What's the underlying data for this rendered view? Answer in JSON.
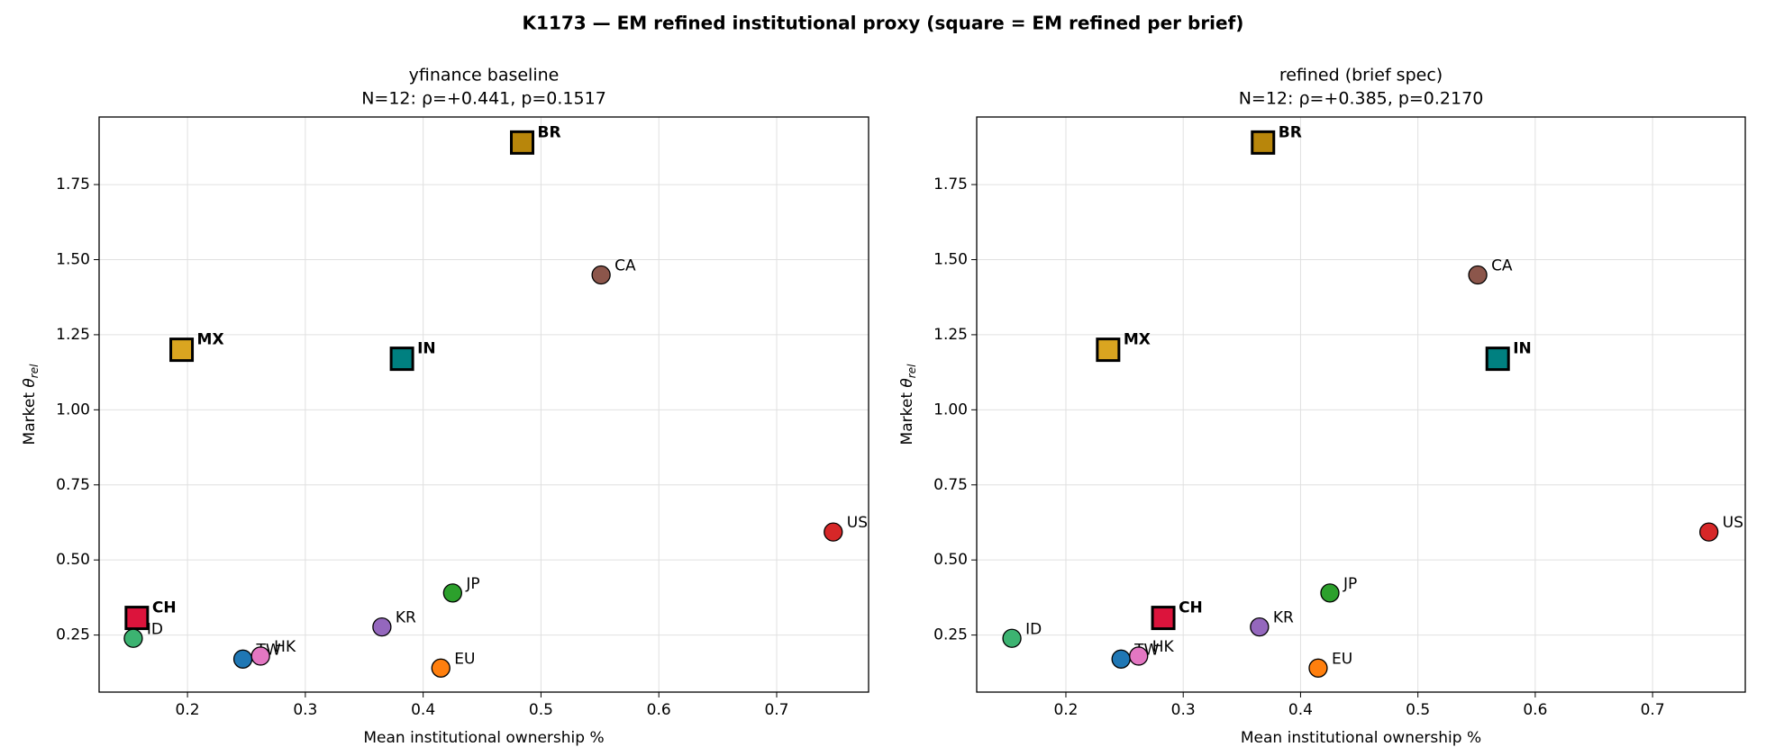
{
  "title": "K1173 — EM refined institutional proxy (square = EM refined per brief)",
  "chart_data": [
    {
      "type": "scatter",
      "title": "yfinance baseline",
      "subtitle": "N=12: ρ=+0.441, p=0.1517",
      "x_label": "Mean institutional ownership %",
      "y_label": "Market θ_rel",
      "labels": [
        "BR",
        "CA",
        "MX",
        "IN",
        "US",
        "JP",
        "CH",
        "ID",
        "KR",
        "TW",
        "HK",
        "EU"
      ],
      "x": [
        0.484,
        0.551,
        0.195,
        0.382,
        0.748,
        0.425,
        0.157,
        0.154,
        0.365,
        0.247,
        0.262,
        0.415
      ],
      "values": [
        1.89,
        1.449,
        1.2,
        1.17,
        0.593,
        0.39,
        0.307,
        0.239,
        0.277,
        0.17,
        0.18,
        0.14
      ],
      "colors": [
        "#b8860b",
        "#8c564b",
        "#daa520",
        "#008080",
        "#d62728",
        "#2ca02c",
        "#dc143c",
        "#3cb371",
        "#9467bd",
        "#1f77b4",
        "#e377c2",
        "#ff7f0e"
      ],
      "markers": [
        "square",
        "circle",
        "square",
        "square",
        "circle",
        "circle",
        "square",
        "circle",
        "circle",
        "circle",
        "circle",
        "circle"
      ],
      "xlim": [
        0.125,
        0.778
      ],
      "ylim": [
        0.06,
        1.975
      ],
      "xticks": [
        0.2,
        0.3,
        0.4,
        0.5,
        0.6,
        0.7
      ],
      "yticks": [
        0.25,
        {
          "value": 0.5,
          "label": "0.50"
        },
        0.75,
        {
          "value": 1.0,
          "label": "1.00"
        },
        1.25,
        {
          "value": 1.5,
          "label": "1.50"
        },
        1.75
      ],
      "grid": true
    },
    {
      "type": "scatter",
      "title": "refined (brief spec)",
      "subtitle": "N=12: ρ=+0.385, p=0.2170",
      "x_label": "Mean institutional ownership %",
      "y_label": "Market θ_rel",
      "labels": [
        "BR",
        "CA",
        "MX",
        "IN",
        "US",
        "JP",
        "CH",
        "ID",
        "KR",
        "TW",
        "HK",
        "EU"
      ],
      "x": [
        0.368,
        0.551,
        0.236,
        0.568,
        0.748,
        0.425,
        0.283,
        0.154,
        0.365,
        0.247,
        0.262,
        0.415
      ],
      "values": [
        1.89,
        1.449,
        1.2,
        1.17,
        0.593,
        0.39,
        0.307,
        0.239,
        0.277,
        0.17,
        0.18,
        0.14
      ],
      "colors": [
        "#b8860b",
        "#8c564b",
        "#daa520",
        "#008080",
        "#d62728",
        "#2ca02c",
        "#dc143c",
        "#3cb371",
        "#9467bd",
        "#1f77b4",
        "#e377c2",
        "#ff7f0e"
      ],
      "markers": [
        "square",
        "circle",
        "square",
        "square",
        "circle",
        "circle",
        "square",
        "circle",
        "circle",
        "circle",
        "circle",
        "circle"
      ],
      "xlim": [
        0.124,
        0.779
      ],
      "ylim": [
        0.06,
        1.975
      ],
      "xticks": [
        0.2,
        0.3,
        0.4,
        0.5,
        0.6,
        0.7
      ],
      "yticks": [
        0.25,
        {
          "value": 0.5,
          "label": "0.50"
        },
        0.75,
        {
          "value": 1.0,
          "label": "1.00"
        },
        1.25,
        {
          "value": 1.5,
          "label": "1.50"
        },
        1.75
      ],
      "grid": true
    }
  ]
}
